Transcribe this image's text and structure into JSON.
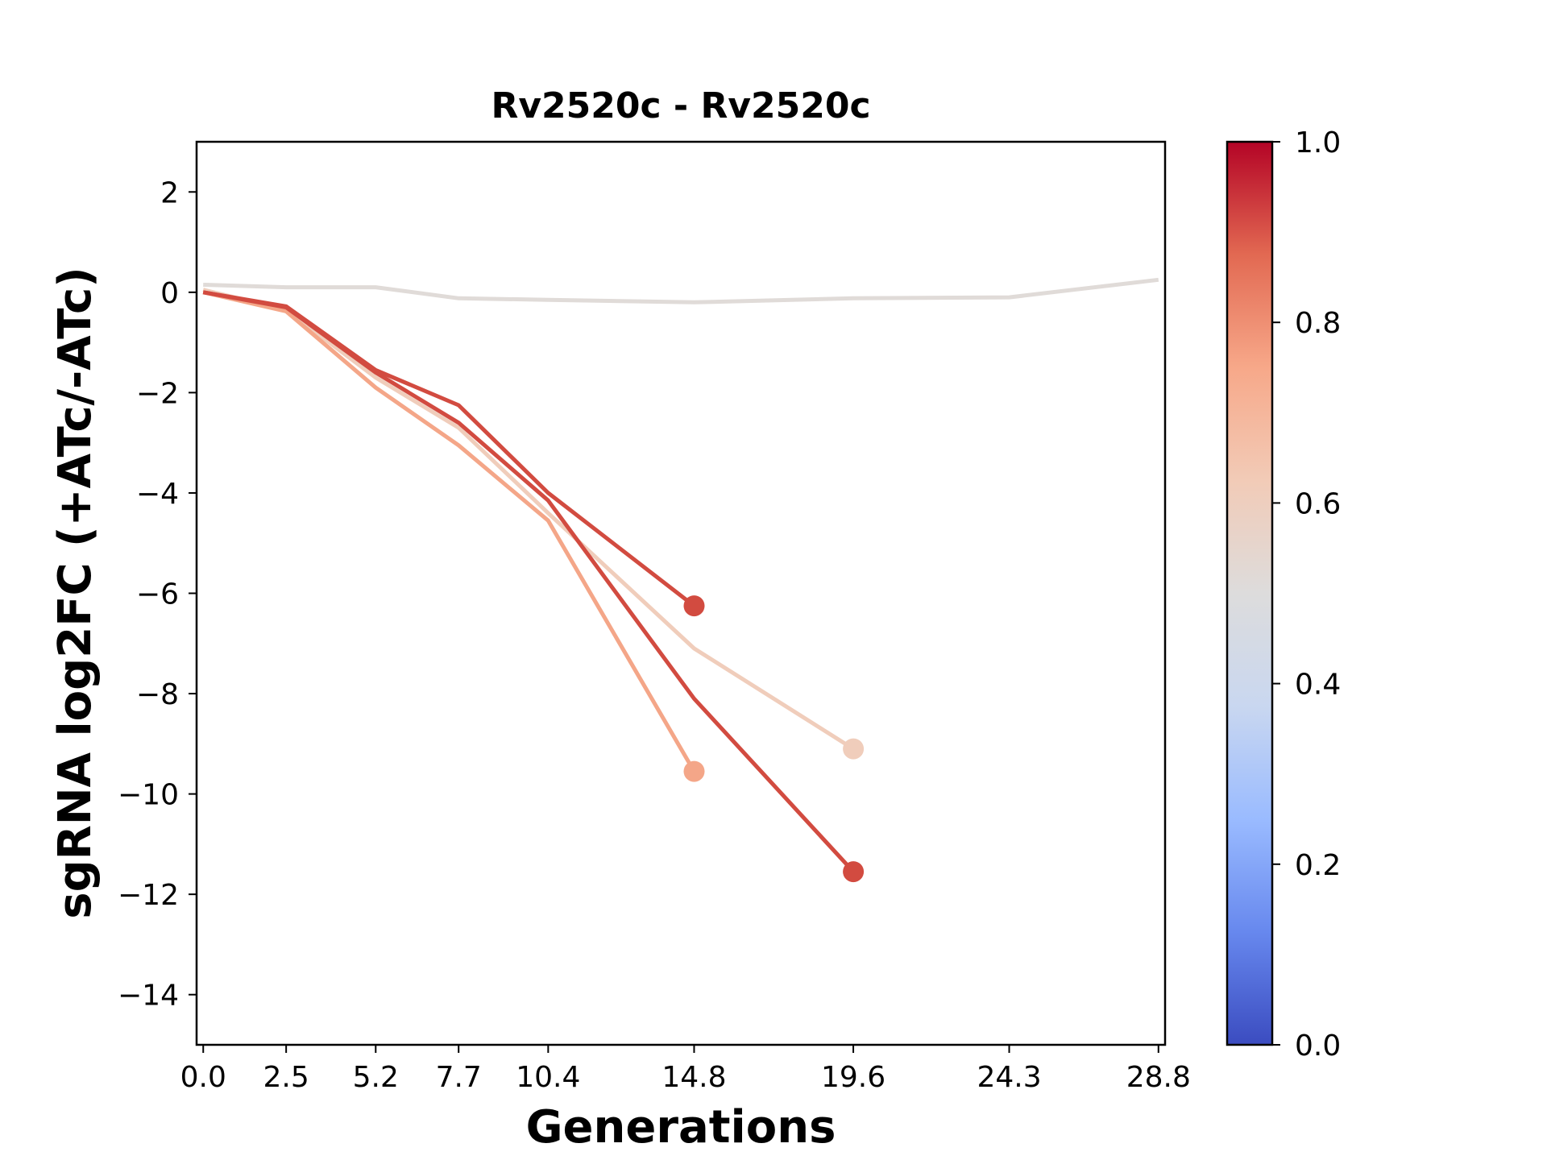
{
  "chart_data": {
    "type": "line",
    "title": "Rv2520c - Rv2520c",
    "xlabel": "Generations",
    "ylabel": "sgRNA log2FC (+ATc/-ATc)",
    "xlim": [
      -0.2,
      29
    ],
    "ylim": [
      -15,
      3
    ],
    "x_ticks": [
      0.0,
      2.5,
      5.2,
      7.7,
      10.4,
      14.8,
      19.6,
      24.3,
      28.8
    ],
    "x_tick_labels": [
      "0.0",
      "2.5",
      "5.2",
      "7.7",
      "10.4",
      "14.8",
      "19.6",
      "24.3",
      "28.8"
    ],
    "y_ticks": [
      2,
      0,
      -2,
      -4,
      -6,
      -8,
      -10,
      -12,
      -14
    ],
    "y_tick_labels": [
      "2",
      "0",
      "−2",
      "−4",
      "−6",
      "−8",
      "−10",
      "−12",
      "−14"
    ],
    "grid": false,
    "colorbar": {
      "range": [
        0.0,
        1.0
      ],
      "ticks": [
        0.0,
        0.2,
        0.4,
        0.6,
        0.8,
        1.0
      ],
      "tick_labels": [
        "0.0",
        "0.2",
        "0.4",
        "0.6",
        "0.8",
        "1.0"
      ],
      "colormap": "coolwarm",
      "colors": [
        "#3b4cc0",
        "#6788ee",
        "#9abbff",
        "#c9d7f0",
        "#dddcdc",
        "#f2cbb7",
        "#f7a889",
        "#e26952",
        "#b40426"
      ]
    },
    "series": [
      {
        "color_value": 0.52,
        "color": "#e0dbd8",
        "end_marker": false,
        "x": [
          0.0,
          2.5,
          5.2,
          7.7,
          10.4,
          14.8,
          19.6,
          24.3,
          28.8
        ],
        "y": [
          0.15,
          0.1,
          0.1,
          -0.12,
          -0.15,
          -0.2,
          -0.12,
          -0.1,
          0.25
        ]
      },
      {
        "color_value": 0.6,
        "color": "#f0cdbb",
        "end_marker": true,
        "x": [
          0.0,
          2.5,
          5.2,
          7.7,
          10.4,
          14.8,
          19.6
        ],
        "y": [
          0.05,
          -0.35,
          -1.7,
          -2.7,
          -4.4,
          -7.1,
          -9.1
        ]
      },
      {
        "color_value": 0.72,
        "color": "#f4a688",
        "end_marker": true,
        "x": [
          0.0,
          2.5,
          5.2,
          7.7,
          10.4,
          14.8
        ],
        "y": [
          0.0,
          -0.38,
          -1.9,
          -3.05,
          -4.55,
          -9.55
        ]
      },
      {
        "color_value": 0.9,
        "color": "#d24b40",
        "end_marker": true,
        "x": [
          0.0,
          2.5,
          5.2,
          7.7,
          10.4,
          14.8,
          19.6
        ],
        "y": [
          0.0,
          -0.3,
          -1.6,
          -2.6,
          -4.15,
          -8.1,
          -11.55
        ]
      },
      {
        "color_value": 0.9,
        "color": "#d24b40",
        "end_marker": true,
        "x": [
          0.0,
          2.5,
          5.2,
          7.7,
          10.4,
          14.8
        ],
        "y": [
          0.0,
          -0.28,
          -1.55,
          -2.25,
          -4.0,
          -6.25
        ]
      }
    ]
  }
}
